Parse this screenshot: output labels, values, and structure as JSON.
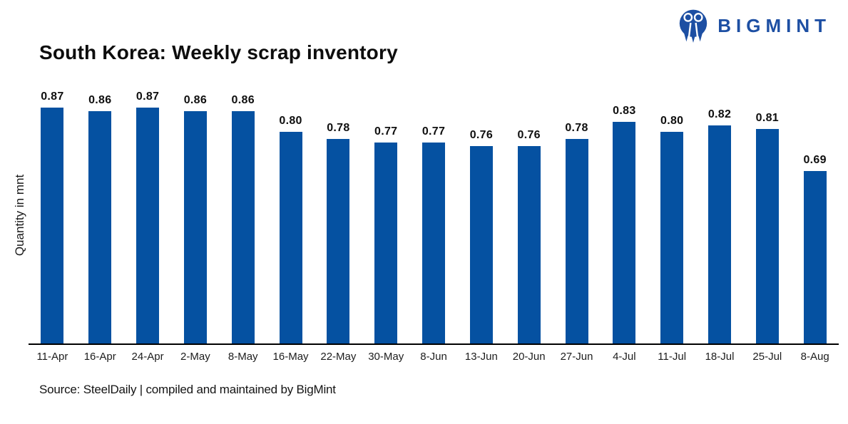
{
  "header": {
    "title": "South Korea: Weekly scrap inventory"
  },
  "logo": {
    "brand": "BIGMINT",
    "icon": "bigmint-people-m-icon"
  },
  "chart_data": {
    "type": "bar",
    "title": "South Korea: Weekly scrap inventory",
    "categories": [
      "11-Apr",
      "16-Apr",
      "24-Apr",
      "2-May",
      "8-May",
      "16-May",
      "22-May",
      "30-May",
      "8-Jun",
      "13-Jun",
      "20-Jun",
      "27-Jun",
      "4-Jul",
      "11-Jul",
      "18-Jul",
      "25-Jul",
      "8-Aug"
    ],
    "values": [
      0.87,
      0.86,
      0.87,
      0.86,
      0.86,
      0.8,
      0.78,
      0.77,
      0.77,
      0.76,
      0.76,
      0.78,
      0.83,
      0.8,
      0.82,
      0.81,
      0.69
    ],
    "xlabel": "",
    "ylabel": "Quantity in mnt",
    "ylim": [
      0.2,
      0.9
    ],
    "grid": false,
    "legend": "none",
    "data_labels": true,
    "value_format": "2-decimals"
  },
  "footer": {
    "source": "Source: SteelDaily | compiled and maintained by BigMint"
  },
  "colors": {
    "bar": "#0551A1",
    "logo_blue": "#1D4FA3",
    "axis_line": "#000000"
  }
}
